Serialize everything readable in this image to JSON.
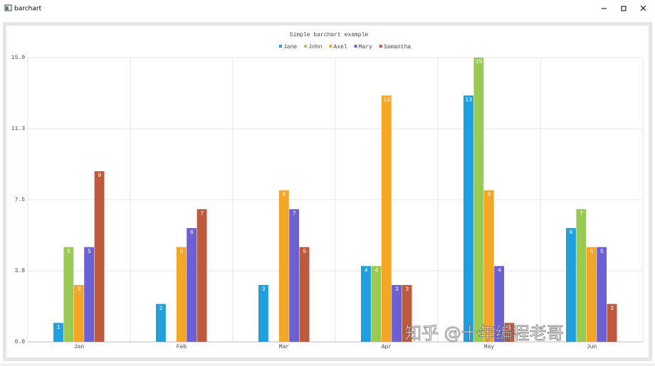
{
  "window_title": "barchart",
  "watermark": "知乎 @十年编程老哥",
  "chart_data": {
    "type": "bar",
    "title": "Simple barchart example",
    "categories": [
      "Jan",
      "Feb",
      "Mar",
      "Apr",
      "May",
      "Jun"
    ],
    "series": [
      {
        "name": "Jane",
        "color": "#209fdf",
        "values": [
          1,
          2,
          3,
          4,
          13,
          6
        ]
      },
      {
        "name": "John",
        "color": "#99ca53",
        "values": [
          5,
          0,
          0,
          4,
          15,
          7
        ]
      },
      {
        "name": "Axel",
        "color": "#f6a625",
        "values": [
          3,
          5,
          8,
          13,
          8,
          5
        ]
      },
      {
        "name": "Mary",
        "color": "#6d5fd5",
        "values": [
          5,
          6,
          7,
          3,
          4,
          5
        ]
      },
      {
        "name": "Samantha",
        "color": "#bf593e",
        "values": [
          9,
          7,
          5,
          3,
          1,
          2
        ]
      }
    ],
    "ylim": [
      0,
      15
    ],
    "yticks": [
      {
        "value": 0,
        "label": "0.0"
      },
      {
        "value": 3.75,
        "label": "3.8"
      },
      7.5,
      {
        "value": 11.25,
        "label": "11.3"
      },
      {
        "value": 15,
        "label": "15.0"
      }
    ],
    "grid": true
  }
}
